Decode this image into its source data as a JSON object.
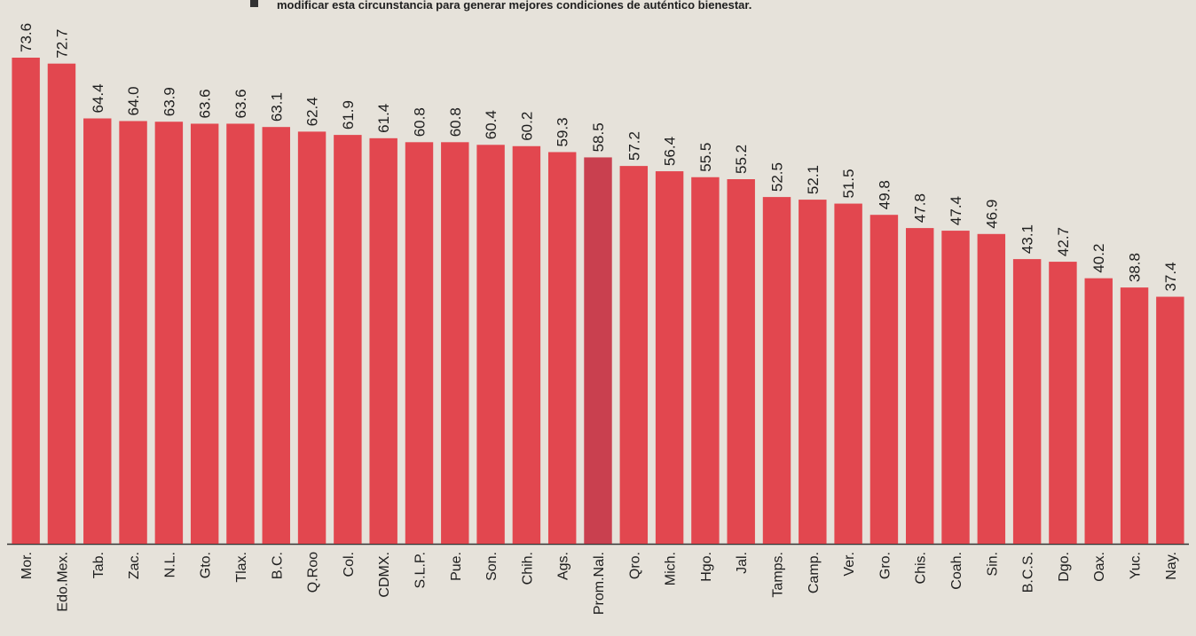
{
  "chart_data": {
    "type": "bar",
    "subtitle": "modificar esta circunstancia para generar mejores condiciones de auténtico bienestar.",
    "categories": [
      "Mor.",
      "Edo.Mex.",
      "Tab.",
      "Zac.",
      "N.L.",
      "Gto.",
      "Tlax.",
      "B.C.",
      "Q.Roo",
      "Col.",
      "CDMX.",
      "S.L.P.",
      "Pue.",
      "Son.",
      "Chih.",
      "Ags.",
      "Prom.Nal.",
      "Qro.",
      "Mich.",
      "Hgo.",
      "Jal.",
      "Tamps.",
      "Camp.",
      "Ver.",
      "Gro.",
      "Chis.",
      "Coah.",
      "Sin.",
      "B.C.S.",
      "Dgo.",
      "Oax.",
      "Yuc.",
      "Nay."
    ],
    "values": [
      73.6,
      72.7,
      64.4,
      64.0,
      63.9,
      63.6,
      63.6,
      63.1,
      62.4,
      61.9,
      61.4,
      60.8,
      60.8,
      60.4,
      60.2,
      59.3,
      58.5,
      57.2,
      56.4,
      55.5,
      55.2,
      52.5,
      52.1,
      51.5,
      49.8,
      47.8,
      47.4,
      46.9,
      43.1,
      42.7,
      40.2,
      38.8,
      37.4
    ],
    "value_labels": [
      "73.6",
      "72.7",
      "64.4",
      "64.0",
      "63.9",
      "63.6",
      "63.6",
      "63.1",
      "62.4",
      "61.9",
      "61.4",
      "60.8",
      "60.8",
      "60.4",
      "60.2",
      "59.3",
      "58.5",
      "57.2",
      "56.4",
      "55.5",
      "55.2",
      "52.5",
      "52.1",
      "51.5",
      "49.8",
      "47.8",
      "47.4",
      "46.9",
      "43.1",
      "42.7",
      "40.2",
      "38.8",
      "37.4"
    ],
    "colors": [
      "#e2474f",
      "#e2474f",
      "#e2474f",
      "#e2474f",
      "#e2474f",
      "#e2474f",
      "#e2474f",
      "#e2474f",
      "#e2474f",
      "#e2474f",
      "#e2474f",
      "#e2474f",
      "#e2474f",
      "#e2474f",
      "#e2474f",
      "#e2474f",
      "#c9404f",
      "#e2474f",
      "#e2474f",
      "#e2474f",
      "#e2474f",
      "#e2474f",
      "#e2474f",
      "#e2474f",
      "#e2474f",
      "#e2474f",
      "#e2474f",
      "#e2474f",
      "#e2474f",
      "#e2474f",
      "#e2474f",
      "#e2474f",
      "#e2474f"
    ]
  }
}
